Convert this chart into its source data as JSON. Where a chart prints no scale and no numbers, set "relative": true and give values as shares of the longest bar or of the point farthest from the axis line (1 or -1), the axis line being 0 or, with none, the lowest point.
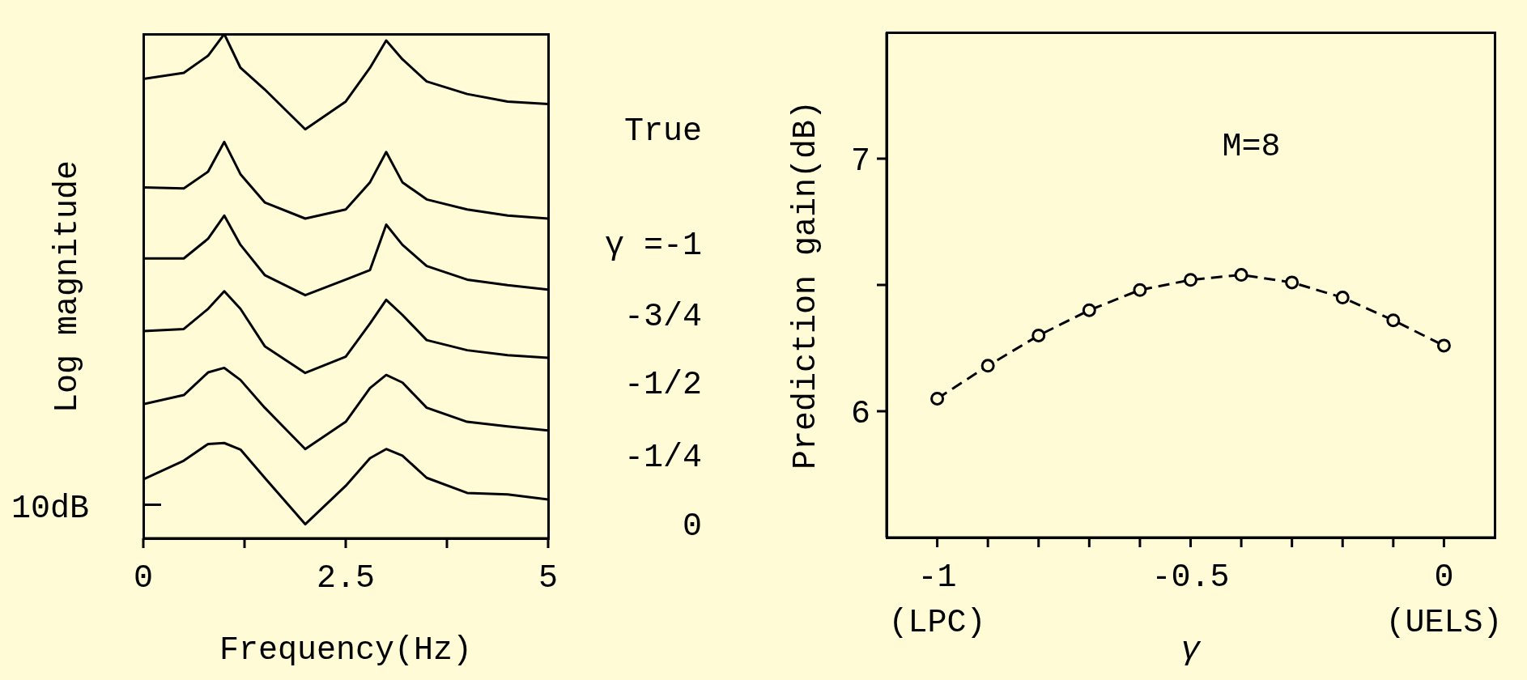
{
  "chart_data": [
    {
      "type": "line",
      "relative": true,
      "xlabel": "Frequency(Hz)",
      "ylabel": "Log magnitude",
      "x": [
        0,
        0.5,
        0.8,
        1.0,
        1.2,
        1.5,
        2.0,
        2.5,
        2.8,
        3.0,
        3.2,
        3.5,
        4.0,
        4.5,
        5
      ],
      "xlim": [
        0,
        5
      ],
      "xticks": [
        0,
        {
          "value": 1.25,
          "label": null
        },
        2.5,
        {
          "value": 3.75,
          "label": null
        },
        5
      ],
      "marker": "none",
      "line_style": "solid",
      "annotations": [
        "10dB"
      ],
      "series": [
        {
          "name": "True",
          "color": "#000000",
          "values": [
            0.911,
            0.923,
            0.957,
            1,
            0.933,
            0.89,
            0.811,
            0.866,
            0.933,
            0.987,
            0.95,
            0.906,
            0.881,
            0.866,
            0.861
          ]
        },
        {
          "name": "γ =-1",
          "color": "#000000",
          "values": [
            0.696,
            0.694,
            0.727,
            0.786,
            0.722,
            0.666,
            0.634,
            0.652,
            0.706,
            0.766,
            0.706,
            0.672,
            0.652,
            0.64,
            0.634
          ]
        },
        {
          "name": "-3/4",
          "color": "#000000",
          "values": [
            0.555,
            0.555,
            0.594,
            0.64,
            0.582,
            0.522,
            0.482,
            0.513,
            0.532,
            0.622,
            0.582,
            0.54,
            0.513,
            0.502,
            0.493
          ]
        },
        {
          "name": "-1/2",
          "color": "#000000",
          "values": [
            0.411,
            0.415,
            0.455,
            0.49,
            0.455,
            0.381,
            0.328,
            0.36,
            0.426,
            0.473,
            0.443,
            0.393,
            0.373,
            0.363,
            0.358
          ]
        },
        {
          "name": "-1/4",
          "color": "#000000",
          "values": [
            0.266,
            0.284,
            0.329,
            0.338,
            0.314,
            0.259,
            0.177,
            0.231,
            0.298,
            0.324,
            0.309,
            0.259,
            0.231,
            0.222,
            0.214
          ]
        },
        {
          "name": "0",
          "color": "#000000",
          "values": [
            0.117,
            0.154,
            0.187,
            0.189,
            0.176,
            0.12,
            0.028,
            0.104,
            0.159,
            0.177,
            0.164,
            0.12,
            0.09,
            0.087,
            0.077
          ]
        }
      ]
    },
    {
      "type": "line",
      "xlabel": "γ",
      "ylabel": "Prediction gain(dB)",
      "x": [
        -1,
        -0.9,
        -0.8,
        -0.7,
        -0.6,
        -0.5,
        -0.4,
        -0.3,
        -0.2,
        -0.1,
        0
      ],
      "xlim": [
        -1.1,
        0.1
      ],
      "xticks": [
        -1,
        {
          "value": -0.9,
          "label": null
        },
        {
          "value": -0.8,
          "label": null
        },
        {
          "value": -0.7,
          "label": null
        },
        {
          "value": -0.6,
          "label": null
        },
        -0.5,
        {
          "value": -0.4,
          "label": null
        },
        {
          "value": -0.3,
          "label": null
        },
        {
          "value": -0.2,
          "label": null
        },
        {
          "value": -0.1,
          "label": null
        },
        0
      ],
      "ylim": [
        5.5,
        7.5
      ],
      "yticks": [
        6,
        {
          "value": 6.5,
          "label": null
        },
        7
      ],
      "marker": "circle",
      "line_style": "dashed",
      "annotations": [
        "M=8",
        "(LPC)",
        "(UELS)"
      ],
      "series": [
        {
          "color": "#000000",
          "values": [
            6.05,
            6.18,
            6.3,
            6.4,
            6.48,
            6.52,
            6.54,
            6.51,
            6.45,
            6.36,
            6.26
          ]
        }
      ]
    }
  ]
}
